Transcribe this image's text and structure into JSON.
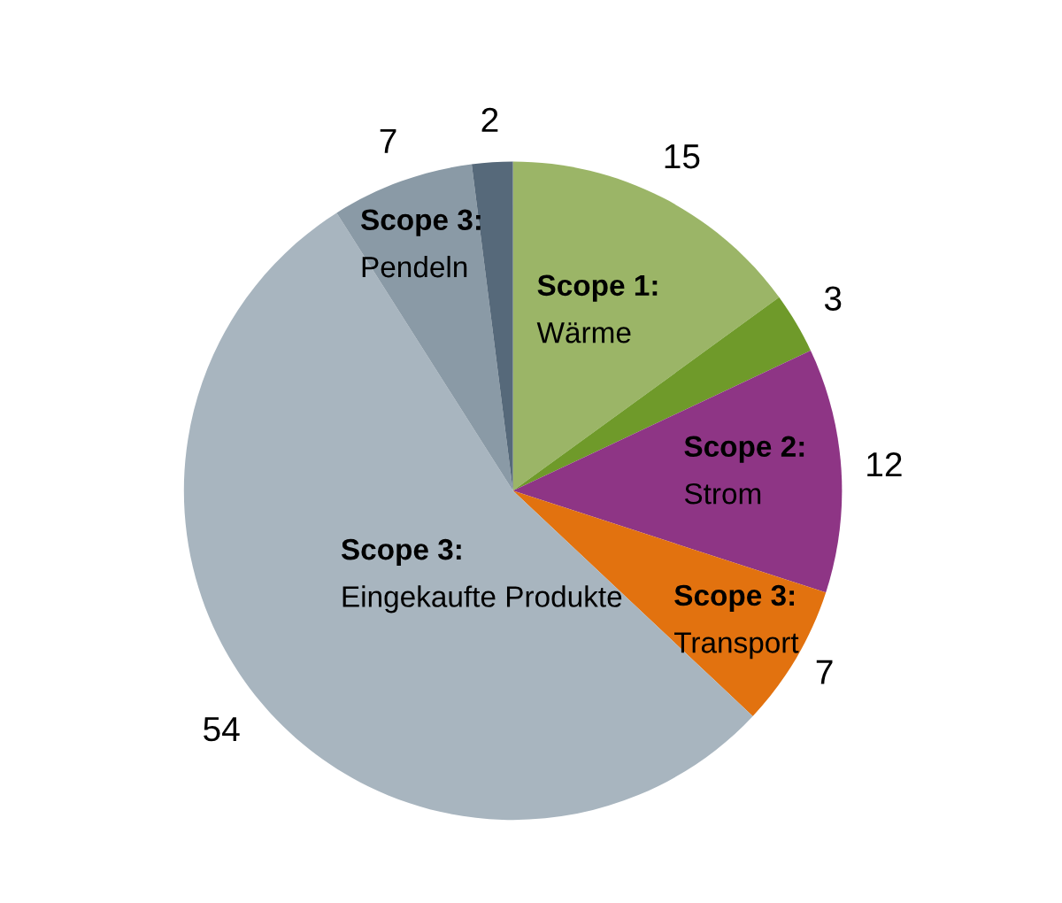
{
  "chart_data": {
    "type": "pie",
    "categories": [
      "Scope 1:\nWärme",
      null,
      "Scope 2:\nStrom",
      "Scope 3:\nTransport",
      "Scope 3:\nEingekaufte Produkte",
      "Scope 3:\nPendeln",
      null
    ],
    "values": [
      15,
      3,
      12,
      7,
      54,
      7,
      2
    ],
    "colors": [
      "#9bb567",
      "#6f9a2a",
      "#8e3585",
      "#e2720f",
      "#a8b5bf",
      "#8a9aa6",
      "#56697a"
    ],
    "data_labels": true
  }
}
